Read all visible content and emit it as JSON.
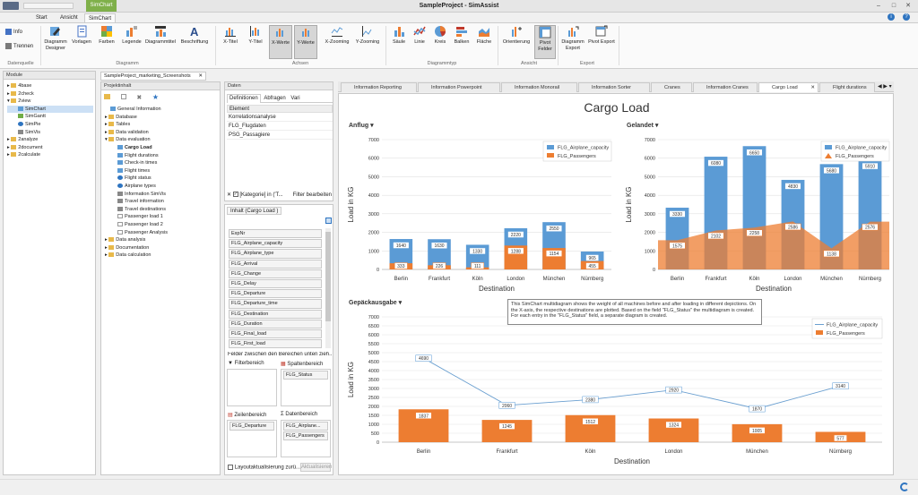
{
  "window": {
    "title": "SampleProject - SimAssist",
    "context_tab": "SimChart"
  },
  "menu": {
    "tabs": [
      "Start",
      "Ansicht",
      "SimChart"
    ]
  },
  "ribbon": {
    "left": {
      "info": "Info",
      "trennen": "Trennen",
      "group": "Datenquelle"
    },
    "diagramm": {
      "buttons": [
        "Diagramm Designer",
        "Vorlagen",
        "Farben",
        "Legende",
        "Diagrammtitel",
        "Beschriftung"
      ],
      "group": "Diagramm"
    },
    "achsen": {
      "buttons": [
        "X-Titel",
        "Y-Titel",
        "X-Werte",
        "Y-Werte",
        "X-Zooming",
        "Y-Zooming"
      ],
      "group": "Achsen"
    },
    "typ": {
      "buttons": [
        "Säule",
        "Linie",
        "Kreis",
        "Balken",
        "Fläche"
      ],
      "group": "Diagrammtyp"
    },
    "ansicht": {
      "buttons": [
        "Orientierung",
        "Pivot Felder"
      ],
      "group": "Ansicht"
    },
    "export": {
      "buttons": [
        "Diagramm Export",
        "Pivot Export"
      ],
      "group": "Export"
    }
  },
  "modules": {
    "header": "Module",
    "items": [
      "4base",
      "2check",
      "2view",
      "SimChart",
      "SimGantt",
      "SimPie",
      "SimVis",
      "2analyze",
      "2document",
      "2calculate"
    ]
  },
  "doc_tab": "SampleProject_marketing_Screenshots",
  "project": {
    "header": "Projektinhalt",
    "items": [
      "General Information",
      "Database",
      "Tables",
      "Data validation",
      "Data evaluation",
      "Cargo Load",
      "Flight durations",
      "Check-in times",
      "Flight times",
      "Flight status",
      "Airplane types",
      "Information SimVis",
      "Travel information",
      "Travel destinations",
      "Passenger load 1",
      "Passenger load 2",
      "Passenger Analysis",
      "Data analysis",
      "Documentation",
      "Data calculation"
    ]
  },
  "daten": {
    "header": "Daten",
    "tabs": [
      "Definitionen",
      "Abfragen",
      "Vari"
    ],
    "col": "Element",
    "rows": [
      "Korrelationsanalyse",
      "FLG_Flugdaten",
      "PSG_Passagiere"
    ],
    "filter_text": "[Kategorie] in ('T...",
    "filter_button": "Filter bearbeiten"
  },
  "inhalt": {
    "header": "Inhalt (Cargo Load )",
    "fields": [
      "ExpNr",
      "FLG_Airplane_capacity",
      "FLG_Airplane_type",
      "FLG_Arrival",
      "FLG_Change",
      "FLG_Delay",
      "FLG_Departure",
      "FLG_Departure_time",
      "FLG_Destination",
      "FLG_Duration",
      "FLG_Final_load",
      "FLG_First_load"
    ],
    "hint": "Felder zwischen den Bereichen unten zieh...",
    "filterbereich": "Filterbereich",
    "spaltenbereich": "Spaltenbereich",
    "spalten_field": "FLG_Status",
    "zeilenbereich": "Zeilenbereich",
    "datenbereich": "Datenbereich",
    "zeilen_field": "FLG_Departure",
    "daten_fields": [
      "FLG_Airplane...",
      "FLG_Passengers"
    ],
    "layout_cb": "Layoutaktualisierung zurü...",
    "aktualisieren": "Aktualisieren"
  },
  "chart_tabs": [
    "Information Reporting",
    "Information Powerpoint",
    "Information Monorail",
    "Information Sorter",
    "Cranes",
    "Information Cranes",
    "Cargo Load",
    "Flight durations"
  ],
  "main_title": "Cargo Load",
  "tooltip": "This SimChart multidiagram shows the weight of all machines before and after loading in different depictions. On the X-axis, the respective destinations are plotted. Based on the field \"FLG_Status\" the multidiagram is created. For each entry in the \"FLG_Status\" field, a separate diagram is created.",
  "colors": {
    "blue": "#5b9bd5",
    "orange": "#ed7d31",
    "line": "#6a9fd0"
  },
  "chart_data": [
    {
      "type": "bar",
      "title": "Anflug",
      "xlabel": "Destination",
      "ylabel": "Load in KG",
      "ylim": [
        0,
        7000
      ],
      "yticks": [
        0,
        1000,
        2000,
        3000,
        4000,
        5000,
        6000,
        7000
      ],
      "categories": [
        "Berlin",
        "Frankfurt",
        "Köln",
        "London",
        "München",
        "Nürnberg"
      ],
      "series": [
        {
          "name": "FLG_Airplane_capacity",
          "values": [
            1640,
            1630,
            1330,
            2220,
            2550,
            965
          ]
        },
        {
          "name": "FLG_Passengers",
          "values": [
            333,
            226,
            111,
            1288,
            1154,
            455
          ]
        }
      ],
      "legend": "top-right",
      "grid": true
    },
    {
      "type": "bar",
      "title": "Gelandet",
      "xlabel": "Destination",
      "ylabel": "Load in KG",
      "ylim": [
        0,
        7000
      ],
      "yticks": [
        0,
        1000,
        2000,
        3000,
        4000,
        5000,
        6000,
        7000
      ],
      "categories": [
        "Berlin",
        "Frankfurt",
        "Köln",
        "London",
        "München",
        "Nürnberg"
      ],
      "series": [
        {
          "name": "FLG_Airplane_capacity",
          "values": [
            3330,
            6080,
            6650,
            4830,
            5680,
            5910
          ]
        },
        {
          "name": "FLG_Passengers",
          "type": "area",
          "values": [
            1575,
            2102,
            2258,
            2586,
            1138,
            2576
          ]
        }
      ],
      "legend": "top-right",
      "grid": true
    },
    {
      "type": "bar",
      "title": "Gepäckausgabe",
      "xlabel": "Destination",
      "ylabel": "Load in KG",
      "ylim": [
        0,
        7000
      ],
      "yticks": [
        0,
        500,
        1000,
        1500,
        2000,
        2500,
        3000,
        3500,
        4000,
        4500,
        5000,
        5500,
        6000,
        6500,
        7000
      ],
      "categories": [
        "Berlin",
        "Frankfurt",
        "Köln",
        "London",
        "München",
        "Nürnberg"
      ],
      "series": [
        {
          "name": "FLG_Airplane_capacity",
          "type": "line",
          "values": [
            4690,
            2060,
            2380,
            2920,
            1870,
            3140
          ]
        },
        {
          "name": "FLG_Passengers",
          "values": [
            1837,
            1245,
            1512,
            1324,
            1005,
            577
          ]
        }
      ],
      "legend": "top-right",
      "grid": true
    }
  ]
}
